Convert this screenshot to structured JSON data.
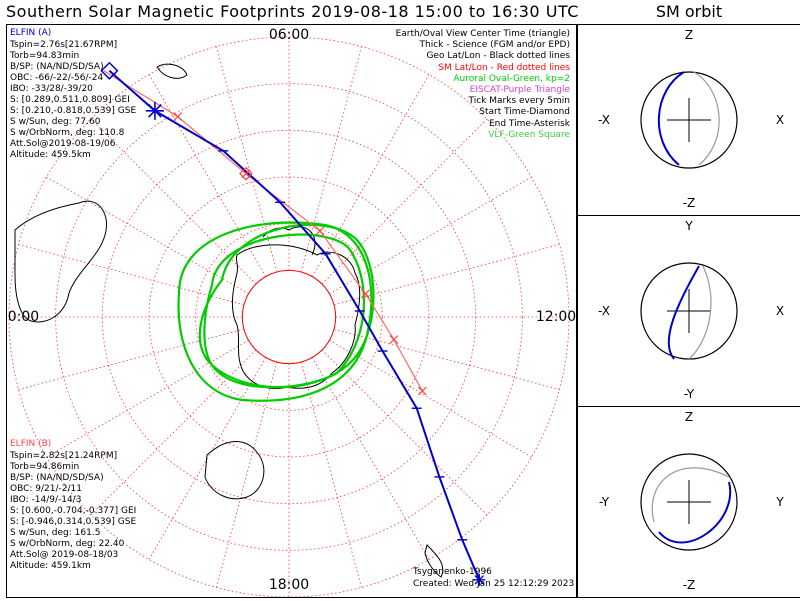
{
  "header": {
    "title": "Southern Solar Magnetic Footprints 2019-08-18 15:00 to 16:30 UTC",
    "side_title": "SM orbit"
  },
  "colors": {
    "orbit_thick": "#0000cc",
    "sm_grid": "#ff0000",
    "aurora": "#00cc00",
    "elfin_a_label": "#0000cc",
    "elfin_b_label": "#ff4444",
    "eiscat": "#cc44cc",
    "vlf": "#44cc44"
  },
  "elfin_a": {
    "name": "ELFIN (A)",
    "lines": [
      "Tspin=2.76s[21.67RPM]",
      "Torb=94.83min",
      "B/SP: (NA/ND/SD/SA)",
      "OBC: -66/-22/-56/-24",
      "IBO: -33/28/-39/20",
      "S: [0.289,0.511,0.809] GEI",
      "S: [0.210,-0.818,0.539] GSE",
      "S w/Sun, deg: 77.60",
      "S w/OrbNorm, deg: 110.8",
      "Att.Sol@2019-08-19/06",
      "Altitude: 459.5km"
    ]
  },
  "elfin_b": {
    "name": "ELFIN (B)",
    "lines": [
      "Tspin=2.82s[21.24RPM]",
      "Torb=94.86min",
      "B/SP: (NA/ND/SD/SA)",
      "OBC: 9/21/-2/11",
      "IBO: -14/9/-14/3",
      "S: [0.600,-0.704,-0.377] GEI",
      "S: [-0.946,0.314,0.539] GSE",
      "S w/Sun, deg: 161.5",
      "S w/OrbNorm, deg: 22.40",
      "Att.Sol@ 2019-08-18/03",
      "Altitude: 459.1km"
    ]
  },
  "legend": [
    {
      "text": "Earth/Oval View Center Time (triangle)",
      "color": "#000000"
    },
    {
      "text": "Thick - Science (FGM and/or EPD)",
      "color": "#000000"
    },
    {
      "text": "Geo Lat/Lon - Black dotted lines",
      "color": "#000000"
    },
    {
      "text": "SM Lat/Lon - Red dotted lines",
      "color": "#ff0000"
    },
    {
      "text": "Auroral Oval-Green, kp=2",
      "color": "#00cc00"
    },
    {
      "text": "EISCAT-Purple Triangle",
      "color": "#cc44cc"
    },
    {
      "text": "Tick Marks every 5min",
      "color": "#000000"
    },
    {
      "text": "Start Time-Diamond",
      "color": "#000000"
    },
    {
      "text": "End Time-Asterisk",
      "color": "#000000"
    },
    {
      "text": "VLF-Green Square",
      "color": "#44cc44"
    }
  ],
  "footer": {
    "credit": "Tsyganenko-1996",
    "created": "Created: Wed Jan 25 12:12:29 2023"
  },
  "chart_data": [
    {
      "type": "polar-map",
      "hour_labels": {
        "top": "06:00",
        "left": "00:00",
        "right": "12:00",
        "bottom": "18:00"
      },
      "sm_lat_rings_deg_from_pole": [
        10,
        20,
        30,
        40,
        50,
        60
      ],
      "sm_lon_spokes_hours": 24,
      "elfin_a_track": [
        [
          0.18,
          0.08
        ],
        [
          0.26,
          0.15
        ],
        [
          0.38,
          0.22
        ],
        [
          0.48,
          0.31
        ],
        [
          0.56,
          0.4
        ],
        [
          0.62,
          0.5
        ],
        [
          0.66,
          0.57
        ],
        [
          0.72,
          0.67
        ],
        [
          0.76,
          0.79
        ],
        [
          0.8,
          0.9
        ],
        [
          0.83,
          0.97
        ]
      ],
      "elfin_b_track": [
        [
          0.17,
          0.08
        ],
        [
          0.3,
          0.16
        ],
        [
          0.42,
          0.26
        ],
        [
          0.55,
          0.36
        ],
        [
          0.63,
          0.47
        ],
        [
          0.68,
          0.55
        ],
        [
          0.73,
          0.64
        ]
      ]
    },
    {
      "type": "scatter",
      "title": "SM orbit",
      "panels": [
        {
          "axes_labels": {
            "top": "Z",
            "bottom": "-Z",
            "left": "-X",
            "right": "X"
          }
        },
        {
          "axes_labels": {
            "top": "Y",
            "bottom": "-Y",
            "left": "-X",
            "right": "X"
          }
        },
        {
          "axes_labels": {
            "top": "Z",
            "bottom": "-Z",
            "left": "-Y",
            "right": "Y"
          }
        }
      ]
    }
  ]
}
